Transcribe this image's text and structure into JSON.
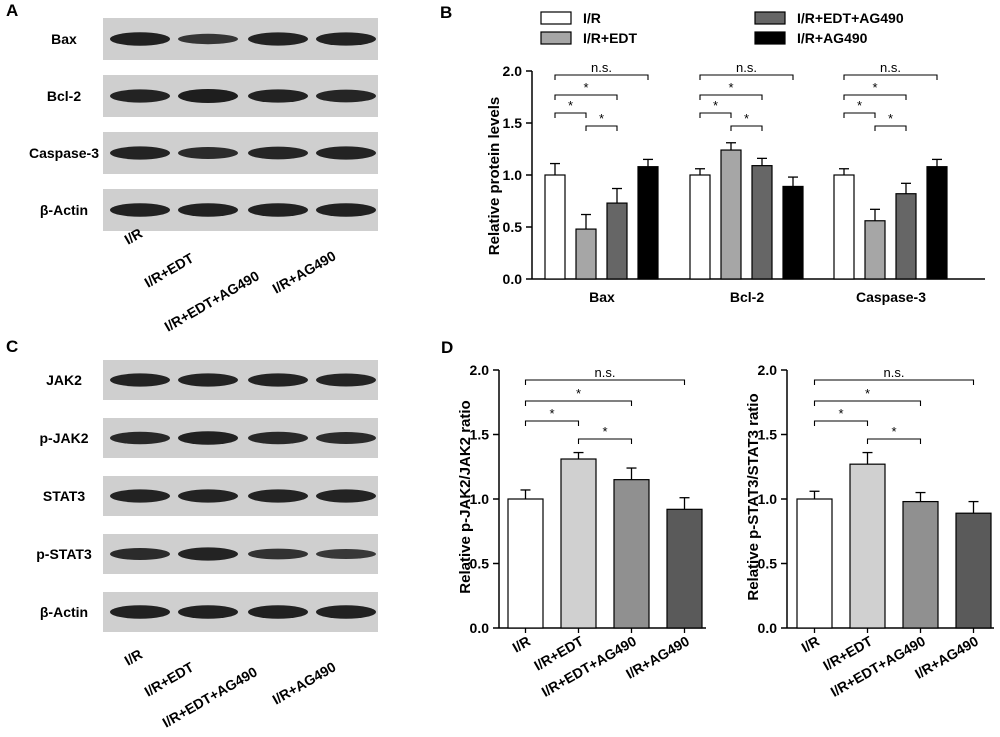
{
  "panels": {
    "A": "A",
    "B": "B",
    "C": "C",
    "D": "D"
  },
  "conditions": [
    "I/R",
    "I/R+EDT",
    "I/R+EDT+AG490",
    "I/R+AG490"
  ],
  "blot_A": {
    "rows": [
      {
        "label": "Bax",
        "intensity": [
          0.95,
          0.55,
          0.9,
          0.92
        ]
      },
      {
        "label": "Bcl-2",
        "intensity": [
          0.9,
          1.0,
          0.92,
          0.85
        ]
      },
      {
        "label": "Caspase-3",
        "intensity": [
          0.9,
          0.75,
          0.85,
          0.9
        ]
      },
      {
        "label": "β-Actin",
        "intensity": [
          0.95,
          0.95,
          0.95,
          0.95
        ]
      }
    ]
  },
  "blot_C": {
    "rows": [
      {
        "label": "JAK2",
        "intensity": [
          0.9,
          0.9,
          0.9,
          0.88
        ]
      },
      {
        "label": "p-JAK2",
        "intensity": [
          0.8,
          0.95,
          0.8,
          0.75
        ]
      },
      {
        "label": "STAT3",
        "intensity": [
          0.9,
          0.9,
          0.9,
          0.9
        ]
      },
      {
        "label": "p-STAT3",
        "intensity": [
          0.75,
          0.9,
          0.6,
          0.5
        ]
      },
      {
        "label": "β-Actin",
        "intensity": [
          0.95,
          0.95,
          0.95,
          0.95
        ]
      }
    ]
  },
  "significance": {
    "star": "*",
    "ns": "n.s."
  },
  "chart_data": [
    {
      "type": "bar",
      "panel": "B",
      "categories": [
        "Bax",
        "Bcl-2",
        "Caspase-3"
      ],
      "ylabel": "Relative protein levels",
      "ylim": [
        0,
        2.0
      ],
      "yticks": [
        "0.0",
        "0.5",
        "1.0",
        "1.5",
        "2.0"
      ],
      "series": [
        {
          "name": "I/R",
          "values": [
            1.0,
            1.0,
            1.0
          ],
          "errors": [
            0.11,
            0.06,
            0.06
          ],
          "color": "#ffffff"
        },
        {
          "name": "I/R+EDT",
          "values": [
            0.48,
            1.24,
            0.56
          ],
          "errors": [
            0.14,
            0.07,
            0.11
          ],
          "color": "#a6a6a6"
        },
        {
          "name": "I/R+EDT+AG490",
          "values": [
            0.73,
            1.09,
            0.82
          ],
          "errors": [
            0.14,
            0.07,
            0.1
          ],
          "color": "#666666"
        },
        {
          "name": "I/R+AG490",
          "values": [
            1.08,
            0.89,
            1.08
          ],
          "errors": [
            0.07,
            0.09,
            0.07
          ],
          "color": "#000000"
        }
      ],
      "legend_order": [
        0,
        1,
        2,
        3
      ],
      "legend_position": "top"
    },
    {
      "type": "bar",
      "panel": "D",
      "categories": [
        "I/R",
        "I/R+EDT",
        "I/R+EDT+AG490",
        "I/R+AG490"
      ],
      "ylabel": "Relative p-JAK2/JAK2 ratio",
      "ylim": [
        0,
        2.0
      ],
      "yticks": [
        "0.0",
        "0.5",
        "1.0",
        "1.5",
        "2.0"
      ],
      "values": [
        1.0,
        1.31,
        1.15,
        0.92
      ],
      "errors": [
        0.07,
        0.05,
        0.09,
        0.09
      ],
      "colors": [
        "#ffffff",
        "#d0d0d0",
        "#909090",
        "#5a5a5a"
      ]
    },
    {
      "type": "bar",
      "panel": "D",
      "categories": [
        "I/R",
        "I/R+EDT",
        "I/R+EDT+AG490",
        "I/R+AG490"
      ],
      "ylabel": "Relative p-STAT3/STAT3 ratio",
      "ylim": [
        0,
        2.0
      ],
      "yticks": [
        "0.0",
        "0.5",
        "1.0",
        "1.5",
        "2.0"
      ],
      "values": [
        1.0,
        1.27,
        0.98,
        0.89
      ],
      "errors": [
        0.06,
        0.09,
        0.07,
        0.09
      ],
      "colors": [
        "#ffffff",
        "#d0d0d0",
        "#909090",
        "#5a5a5a"
      ]
    }
  ]
}
